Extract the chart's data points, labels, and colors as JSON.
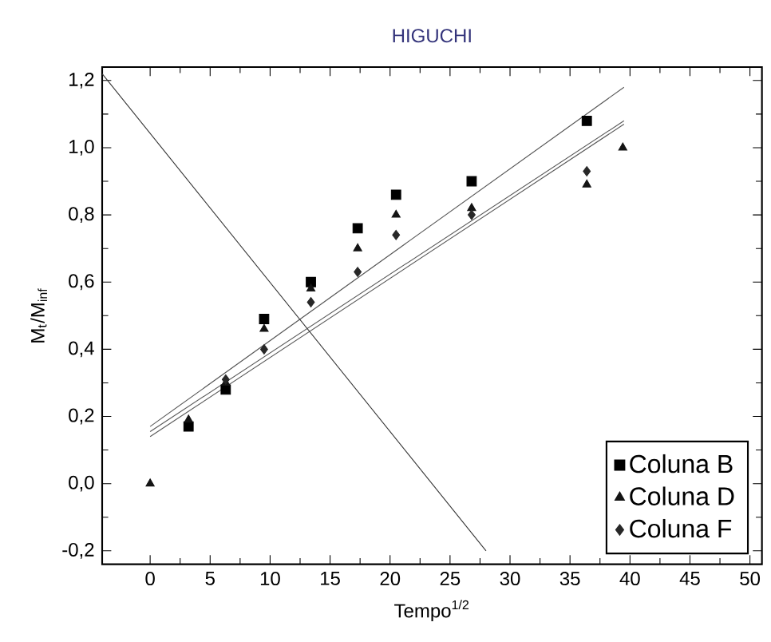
{
  "chart_data": {
    "type": "scatter",
    "title": "HIGUCHI",
    "xlabel": "Tempo$^{1/2}$",
    "ylabel": "M$_{t}$/M$_{inf}$",
    "xlim": [
      -4,
      51
    ],
    "ylim": [
      -0.24,
      1.24
    ],
    "xticks": [
      0,
      5,
      10,
      15,
      20,
      25,
      30,
      35,
      40,
      45,
      50
    ],
    "yticks": [
      {
        "value": -0.2,
        "label": "-0,2"
      },
      {
        "value": 0,
        "label": "0,0"
      },
      {
        "value": 0.2,
        "label": "0,2"
      },
      {
        "value": 0.4,
        "label": "0,4"
      },
      {
        "value": 0.6,
        "label": "0,6"
      },
      {
        "value": 0.8,
        "label": "0,8"
      },
      {
        "value": 1.0,
        "label": "1,0"
      },
      {
        "value": 1.2,
        "label": "1,2"
      }
    ],
    "x": [
      0,
      3.2,
      6.3,
      9.5,
      13.4,
      17.3,
      20.5,
      26.8,
      36.4,
      39.4
    ],
    "series": [
      {
        "name": "Coluna B",
        "color": "#000000",
        "marker": "square",
        "values": [
          null,
          0.17,
          0.28,
          0.49,
          0.6,
          0.76,
          0.86,
          0.9,
          1.08,
          null
        ]
      },
      {
        "name": "Coluna D",
        "color": "#141414",
        "marker": "triangle",
        "values": [
          0,
          0.19,
          0.3,
          0.46,
          0.58,
          0.7,
          0.8,
          0.82,
          0.89,
          1.0
        ]
      },
      {
        "name": "Coluna F",
        "color": "#282828",
        "marker": "diamond",
        "values": [
          null,
          null,
          0.31,
          0.4,
          0.54,
          0.63,
          0.74,
          0.8,
          0.93,
          null
        ]
      },
      {
        "type": "line",
        "color": "#555555",
        "marker": "none",
        "x": [
          0,
          39.5
        ],
        "values": [
          0.17,
          1.18
        ]
      },
      {
        "type": "line",
        "color": "#555555",
        "marker": "none",
        "x": [
          0,
          39.5
        ],
        "values": [
          0.155,
          1.08
        ]
      },
      {
        "type": "line",
        "color": "#555555",
        "marker": "none",
        "x": [
          0,
          39.5
        ],
        "values": [
          0.14,
          1.07
        ]
      },
      {
        "type": "line",
        "color": "#333333",
        "marker": "none",
        "x": [
          -4,
          28
        ],
        "values": [
          1.22,
          -0.2
        ]
      }
    ],
    "legend": "bottom right",
    "grid": false
  }
}
